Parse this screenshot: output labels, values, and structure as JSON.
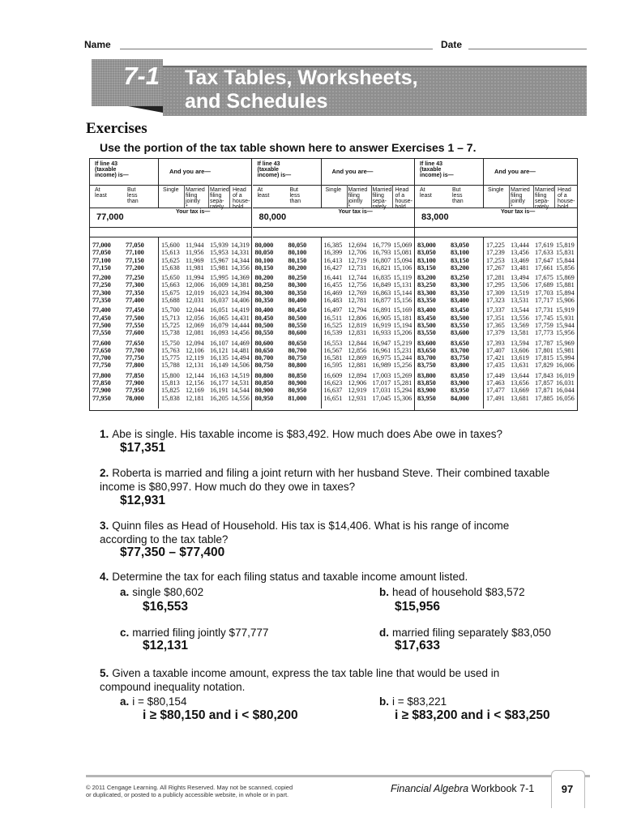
{
  "header": {
    "name_label": "Name",
    "date_label": "Date"
  },
  "lesson": {
    "number": "7-1",
    "title_line1": "Tax Tables, Worksheets,",
    "title_line2": "and Schedules"
  },
  "section_title": "Exercises",
  "instructions": "Use the portion of the tax table shown here to answer Exercises 1 – 7.",
  "table": {
    "header_if": [
      "If line 43",
      "(taxable",
      "income) is—"
    ],
    "header_and": "And you are—",
    "col_atleast": [
      "At",
      "least"
    ],
    "col_butless": [
      "But",
      "less",
      "than"
    ],
    "col_single": "Single",
    "col_mfj": [
      "Married",
      "filing",
      "jointly",
      "*"
    ],
    "col_mfs": [
      "Married",
      "filing",
      "sepa-",
      "rately"
    ],
    "col_hoh": [
      "Head",
      "of a",
      "house-",
      "hold"
    ],
    "your_tax": "Your tax is—",
    "blocks": [
      {
        "label": "77,000",
        "rows": [
          [
            "77,000",
            "77,050",
            "15,600",
            "11,944",
            "15,939",
            "14,319"
          ],
          [
            "77,050",
            "77,100",
            "15,613",
            "11,956",
            "15,953",
            "14,331"
          ],
          [
            "77,100",
            "77,150",
            "15,625",
            "11,969",
            "15,967",
            "14,344"
          ],
          [
            "77,150",
            "77,200",
            "15,638",
            "11,981",
            "15,981",
            "14,356"
          ],
          [
            "77,200",
            "77,250",
            "15,650",
            "11,994",
            "15,995",
            "14,369"
          ],
          [
            "77,250",
            "77,300",
            "15,663",
            "12,006",
            "16,009",
            "14,381"
          ],
          [
            "77,300",
            "77,350",
            "15,675",
            "12,019",
            "16,023",
            "14,394"
          ],
          [
            "77,350",
            "77,400",
            "15,688",
            "12,031",
            "16,037",
            "14,406"
          ],
          [
            "77,400",
            "77,450",
            "15,700",
            "12,044",
            "16,051",
            "14,419"
          ],
          [
            "77,450",
            "77,500",
            "15,713",
            "12,056",
            "16,065",
            "14,431"
          ],
          [
            "77,500",
            "77,550",
            "15,725",
            "12,069",
            "16,079",
            "14,444"
          ],
          [
            "77,550",
            "77,600",
            "15,738",
            "12,081",
            "16,093",
            "14,456"
          ],
          [
            "77,600",
            "77,650",
            "15,750",
            "12,094",
            "16,107",
            "14,469"
          ],
          [
            "77,650",
            "77,700",
            "15,763",
            "12,106",
            "16,121",
            "14,481"
          ],
          [
            "77,700",
            "77,750",
            "15,775",
            "12,119",
            "16,135",
            "14,494"
          ],
          [
            "77,750",
            "77,800",
            "15,788",
            "12,131",
            "16,149",
            "14,506"
          ],
          [
            "77,800",
            "77,850",
            "15,800",
            "12,144",
            "16,163",
            "14,519"
          ],
          [
            "77,850",
            "77,900",
            "15,813",
            "12,156",
            "16,177",
            "14,531"
          ],
          [
            "77,900",
            "77,950",
            "15,825",
            "12,169",
            "16,191",
            "14,544"
          ],
          [
            "77,950",
            "78,000",
            "15,838",
            "12,181",
            "16,205",
            "14,556"
          ]
        ]
      },
      {
        "label": "80,000",
        "rows": [
          [
            "80,000",
            "80,050",
            "16,385",
            "12,694",
            "16,779",
            "15,069"
          ],
          [
            "80,050",
            "80,100",
            "16,399",
            "12,706",
            "16,793",
            "15,081"
          ],
          [
            "80,100",
            "80,150",
            "16,413",
            "12,719",
            "16,807",
            "15,094"
          ],
          [
            "80,150",
            "80,200",
            "16,427",
            "12,731",
            "16,821",
            "15,106"
          ],
          [
            "80,200",
            "80,250",
            "16,441",
            "12,744",
            "16,835",
            "15,119"
          ],
          [
            "80,250",
            "80,300",
            "16,455",
            "12,756",
            "16,849",
            "15,131"
          ],
          [
            "80,300",
            "80,350",
            "16,469",
            "12,769",
            "16,863",
            "15,144"
          ],
          [
            "80,350",
            "80,400",
            "16,483",
            "12,781",
            "16,877",
            "15,156"
          ],
          [
            "80,400",
            "80,450",
            "16,497",
            "12,794",
            "16,891",
            "15,169"
          ],
          [
            "80,450",
            "80,500",
            "16,511",
            "12,806",
            "16,905",
            "15,181"
          ],
          [
            "80,500",
            "80,550",
            "16,525",
            "12,819",
            "16,919",
            "15,194"
          ],
          [
            "80,550",
            "80,600",
            "16,539",
            "12,831",
            "16,933",
            "15,206"
          ],
          [
            "80,600",
            "80,650",
            "16,553",
            "12,844",
            "16,947",
            "15,219"
          ],
          [
            "80,650",
            "80,700",
            "16,567",
            "12,856",
            "16,961",
            "15,231"
          ],
          [
            "80,700",
            "80,750",
            "16,581",
            "12,869",
            "16,975",
            "15,244"
          ],
          [
            "80,750",
            "80,800",
            "16,595",
            "12,881",
            "16,989",
            "15,256"
          ],
          [
            "80,800",
            "80,850",
            "16,609",
            "12,894",
            "17,003",
            "15,269"
          ],
          [
            "80,850",
            "80,900",
            "16,623",
            "12,906",
            "17,017",
            "15,281"
          ],
          [
            "80,900",
            "80,950",
            "16,637",
            "12,919",
            "17,031",
            "15,294"
          ],
          [
            "80,950",
            "81,000",
            "16,651",
            "12,931",
            "17,045",
            "15,306"
          ]
        ]
      },
      {
        "label": "83,000",
        "rows": [
          [
            "83,000",
            "83,050",
            "17,225",
            "13,444",
            "17,619",
            "15,819"
          ],
          [
            "83,050",
            "83,100",
            "17,239",
            "13,456",
            "17,633",
            "15,831"
          ],
          [
            "83,100",
            "83,150",
            "17,253",
            "13,469",
            "17,647",
            "15,844"
          ],
          [
            "83,150",
            "83,200",
            "17,267",
            "13,481",
            "17,661",
            "15,856"
          ],
          [
            "83,200",
            "83,250",
            "17,281",
            "13,494",
            "17,675",
            "15,869"
          ],
          [
            "83,250",
            "83,300",
            "17,295",
            "13,506",
            "17,689",
            "15,881"
          ],
          [
            "83,300",
            "83,350",
            "17,309",
            "13,519",
            "17,703",
            "15,894"
          ],
          [
            "83,350",
            "83,400",
            "17,323",
            "13,531",
            "17,717",
            "15,906"
          ],
          [
            "83,400",
            "83,450",
            "17,337",
            "13,544",
            "17,731",
            "15,919"
          ],
          [
            "83,450",
            "83,500",
            "17,351",
            "13,556",
            "17,745",
            "15,931"
          ],
          [
            "83,500",
            "83,550",
            "17,365",
            "13,569",
            "17,759",
            "15,944"
          ],
          [
            "83,550",
            "83,600",
            "17,379",
            "13,581",
            "17,773",
            "15,956"
          ],
          [
            "83,600",
            "83,650",
            "17,393",
            "13,594",
            "17,787",
            "15,969"
          ],
          [
            "83,650",
            "83,700",
            "17,407",
            "13,606",
            "17,801",
            "15,981"
          ],
          [
            "83,700",
            "83,750",
            "17,421",
            "13,619",
            "17,815",
            "15,994"
          ],
          [
            "83,750",
            "83,800",
            "17,435",
            "13,631",
            "17,829",
            "16,006"
          ],
          [
            "83,800",
            "83,850",
            "17,449",
            "13,644",
            "17,843",
            "16,019"
          ],
          [
            "83,850",
            "83,900",
            "17,463",
            "13,656",
            "17,857",
            "16,031"
          ],
          [
            "83,900",
            "83,950",
            "17,477",
            "13,669",
            "17,871",
            "16,044"
          ],
          [
            "83,950",
            "84,000",
            "17,491",
            "13,681",
            "17,885",
            "16,056"
          ]
        ]
      }
    ]
  },
  "questions": [
    {
      "num": "1.",
      "text": "Abe is single. His taxable income is $83,492. How much does Abe owe in taxes?",
      "answer": "$17,351"
    },
    {
      "num": "2.",
      "text": "Roberta is married and filing a joint return with her husband Steve. Their combined taxable income is $80,997. How much do they owe in taxes?",
      "answer": "$12,931"
    },
    {
      "num": "3.",
      "text": "Quinn files as Head of Household. His tax is $14,406. What is his range of income according to the tax table?",
      "answer": "$77,350 – $77,400"
    },
    {
      "num": "4.",
      "text": "Determine the tax for each filing status and taxable income amount listed.",
      "parts": [
        {
          "label": "a.",
          "text": "single $80,602",
          "answer": "$16,553"
        },
        {
          "label": "b.",
          "text": "head of household $83,572",
          "answer": "$15,956"
        },
        {
          "label": "c.",
          "text": "married filing jointly $77,777",
          "answer": "$12,131"
        },
        {
          "label": "d.",
          "text": "married filing separately $83,050",
          "answer": "$17,633"
        }
      ]
    },
    {
      "num": "5.",
      "text": "Given a taxable income amount, express the tax table line that would be used in compound inequality notation.",
      "parts": [
        {
          "label": "a.",
          "text": "i = $80,154",
          "answer": "i ≥ $80,150 and i < $80,200"
        },
        {
          "label": "b.",
          "text": "i = $83,221",
          "answer": "i ≥ $83,200 and i < $83,250"
        }
      ]
    }
  ],
  "footer": {
    "copyright_line1": "© 2011 Cengage Learning. All Rights Reserved. May not be scanned, copied",
    "copyright_line2": "or duplicated, or posted to a publicly accessible website, in whole or in part.",
    "book_title": "Financial Algebra",
    "book_suffix": " Workbook 7-1",
    "page_number": "97"
  }
}
